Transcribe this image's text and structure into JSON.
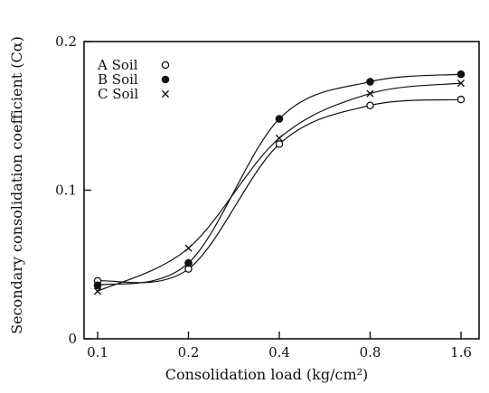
{
  "chart_data": {
    "type": "line",
    "xlabel": "Consolidation load (kg/cm²)",
    "ylabel": "Secondary consolidation coefficient (Cα)",
    "x": [
      0.1,
      0.2,
      0.4,
      0.8,
      1.6
    ],
    "x_tick_labels": [
      "0.1",
      "0.2",
      "0.4",
      "0.8",
      "1.6"
    ],
    "x_scale": "log",
    "ylim": [
      0,
      0.2
    ],
    "y_ticks": [
      0,
      0.1,
      0.2
    ],
    "y_tick_labels": [
      "0",
      "0.1",
      "0.2"
    ],
    "grid": false,
    "legend_position": "top-left",
    "series": [
      {
        "name": "A Soil",
        "marker": "open-circle",
        "values": [
          0.039,
          0.047,
          0.131,
          0.157,
          0.161
        ]
      },
      {
        "name": "B Soil",
        "marker": "filled-circle",
        "values": [
          0.036,
          0.051,
          0.148,
          0.173,
          0.178
        ]
      },
      {
        "name": "C Soil",
        "marker": "cross",
        "values": [
          0.032,
          0.061,
          0.135,
          0.165,
          0.172
        ]
      }
    ]
  }
}
